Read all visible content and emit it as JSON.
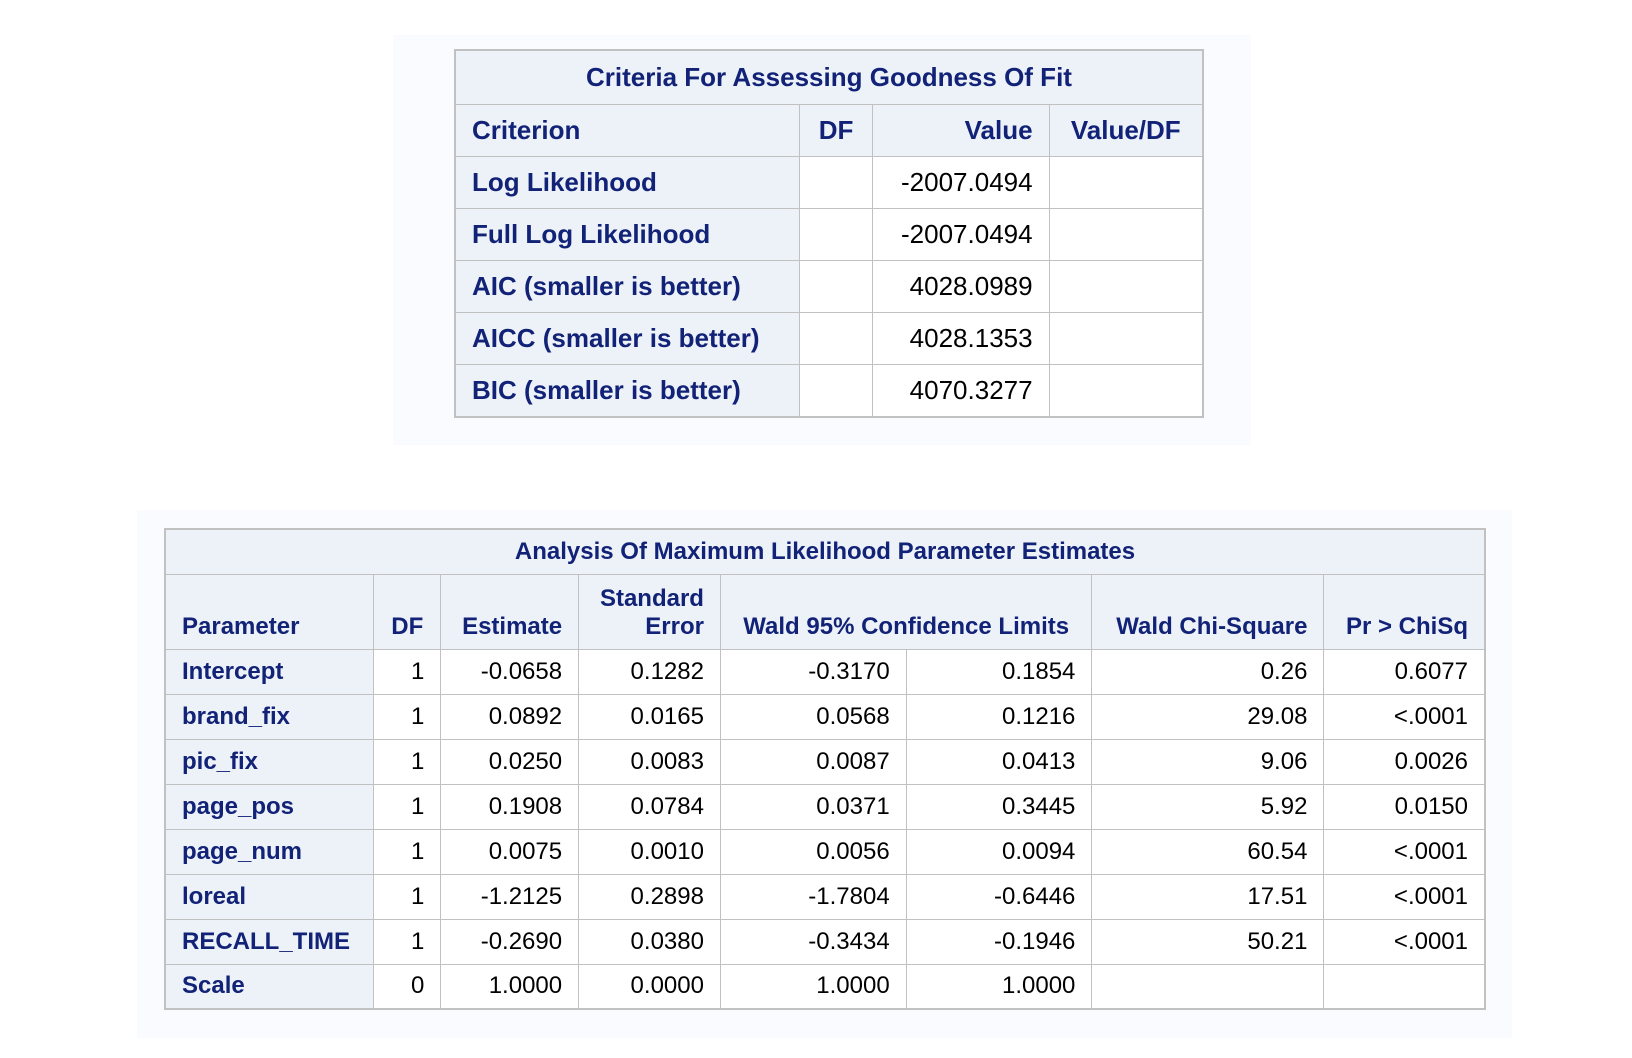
{
  "fit_table": {
    "title": "Criteria For Assessing Goodness Of Fit",
    "headers": [
      "Criterion",
      "DF",
      "Value",
      "Value/DF"
    ],
    "rows": [
      {
        "criterion": "Log Likelihood",
        "df": "",
        "value": "-2007.0494",
        "value_df": ""
      },
      {
        "criterion": "Full Log Likelihood",
        "df": "",
        "value": "-2007.0494",
        "value_df": ""
      },
      {
        "criterion": "AIC (smaller is better)",
        "df": "",
        "value": "4028.0989",
        "value_df": ""
      },
      {
        "criterion": "AICC (smaller is better)",
        "df": "",
        "value": "4028.1353",
        "value_df": ""
      },
      {
        "criterion": "BIC (smaller is better)",
        "df": "",
        "value": "4070.3277",
        "value_df": ""
      }
    ]
  },
  "estimates_table": {
    "title": "Analysis Of Maximum Likelihood Parameter Estimates",
    "headers": {
      "parameter": "Parameter",
      "df": "DF",
      "estimate": "Estimate",
      "std_error_line1": "Standard",
      "std_error_line2": "Error",
      "wald_limits": "Wald 95% Confidence Limits",
      "wald_chisq": "Wald Chi-Square",
      "pr_chisq": "Pr > ChiSq"
    },
    "rows": [
      {
        "parameter": "Intercept",
        "df": "1",
        "estimate": "-0.0658",
        "std_error": "0.1282",
        "lower": "-0.3170",
        "upper": "0.1854",
        "chisq": "0.26",
        "p": "0.6077"
      },
      {
        "parameter": "brand_fix",
        "df": "1",
        "estimate": "0.0892",
        "std_error": "0.0165",
        "lower": "0.0568",
        "upper": "0.1216",
        "chisq": "29.08",
        "p": "<.0001"
      },
      {
        "parameter": "pic_fix",
        "df": "1",
        "estimate": "0.0250",
        "std_error": "0.0083",
        "lower": "0.0087",
        "upper": "0.0413",
        "chisq": "9.06",
        "p": "0.0026"
      },
      {
        "parameter": "page_pos",
        "df": "1",
        "estimate": "0.1908",
        "std_error": "0.0784",
        "lower": "0.0371",
        "upper": "0.3445",
        "chisq": "5.92",
        "p": "0.0150"
      },
      {
        "parameter": "page_num",
        "df": "1",
        "estimate": "0.0075",
        "std_error": "0.0010",
        "lower": "0.0056",
        "upper": "0.0094",
        "chisq": "60.54",
        "p": "<.0001"
      },
      {
        "parameter": "loreal",
        "df": "1",
        "estimate": "-1.2125",
        "std_error": "0.2898",
        "lower": "-1.7804",
        "upper": "-0.6446",
        "chisq": "17.51",
        "p": "<.0001"
      },
      {
        "parameter": "RECALL_TIME",
        "df": "1",
        "estimate": "-0.2690",
        "std_error": "0.0380",
        "lower": "-0.3434",
        "upper": "-0.1946",
        "chisq": "50.21",
        "p": "<.0001"
      },
      {
        "parameter": "Scale",
        "df": "0",
        "estimate": "1.0000",
        "std_error": "0.0000",
        "lower": "1.0000",
        "upper": "1.0000",
        "chisq": "",
        "p": ""
      }
    ]
  }
}
